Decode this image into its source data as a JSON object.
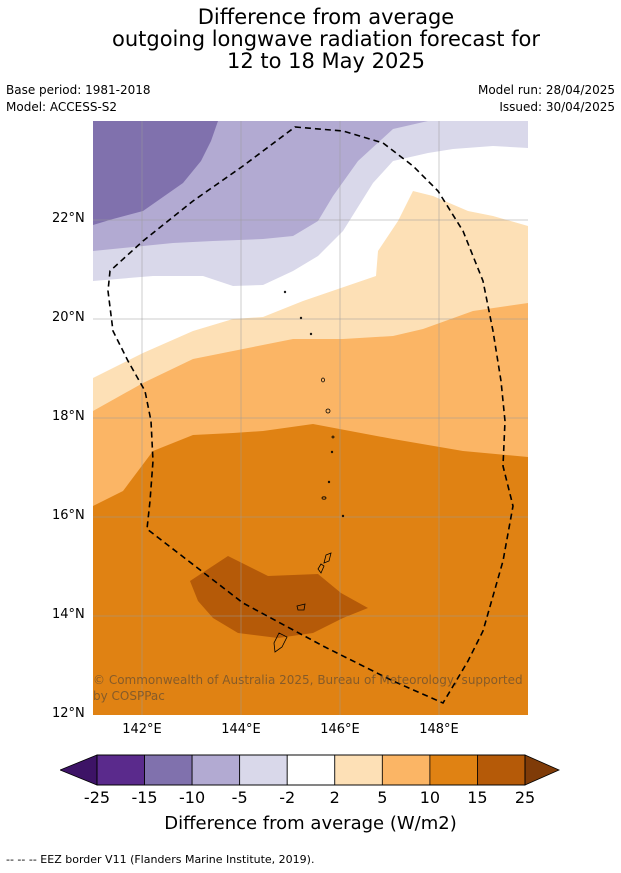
{
  "header": {
    "title_line1": "Difference from average",
    "title_line2": "outgoing longwave radiation forecast for",
    "title_line3": "12 to 18 May 2025",
    "base_period": "Base period: 1981-2018",
    "model": "Model: ACCESS-S2",
    "model_run": "Model run: 28/04/2025",
    "issued": "Issued: 30/04/2025"
  },
  "map": {
    "lat_labels": [
      "22°N",
      "20°N",
      "18°N",
      "16°N",
      "14°N",
      "12°N"
    ],
    "lon_labels": [
      "142°E",
      "144°E",
      "146°E",
      "148°E"
    ],
    "copyright": "© Commonwealth of Australia 2025, Bureau of Meteorology, supported by COSPPac"
  },
  "colorbar": {
    "tick_labels": [
      "-25",
      "-15",
      "-10",
      "-5",
      "-2",
      "2",
      "5",
      "10",
      "15",
      "25"
    ],
    "colors": [
      "#3d1366",
      "#5a2a8c",
      "#8071ad",
      "#b2aad2",
      "#d9d8ea",
      "#ffffff",
      "#fde0b6",
      "#fbb565",
      "#e08213",
      "#b55a08",
      "#7f3b08"
    ],
    "title": "Difference from average (W/m2)"
  },
  "footer": {
    "legend": "--  --  -- EEZ border V11 (Flanders Marine Institute, 2019)."
  }
}
